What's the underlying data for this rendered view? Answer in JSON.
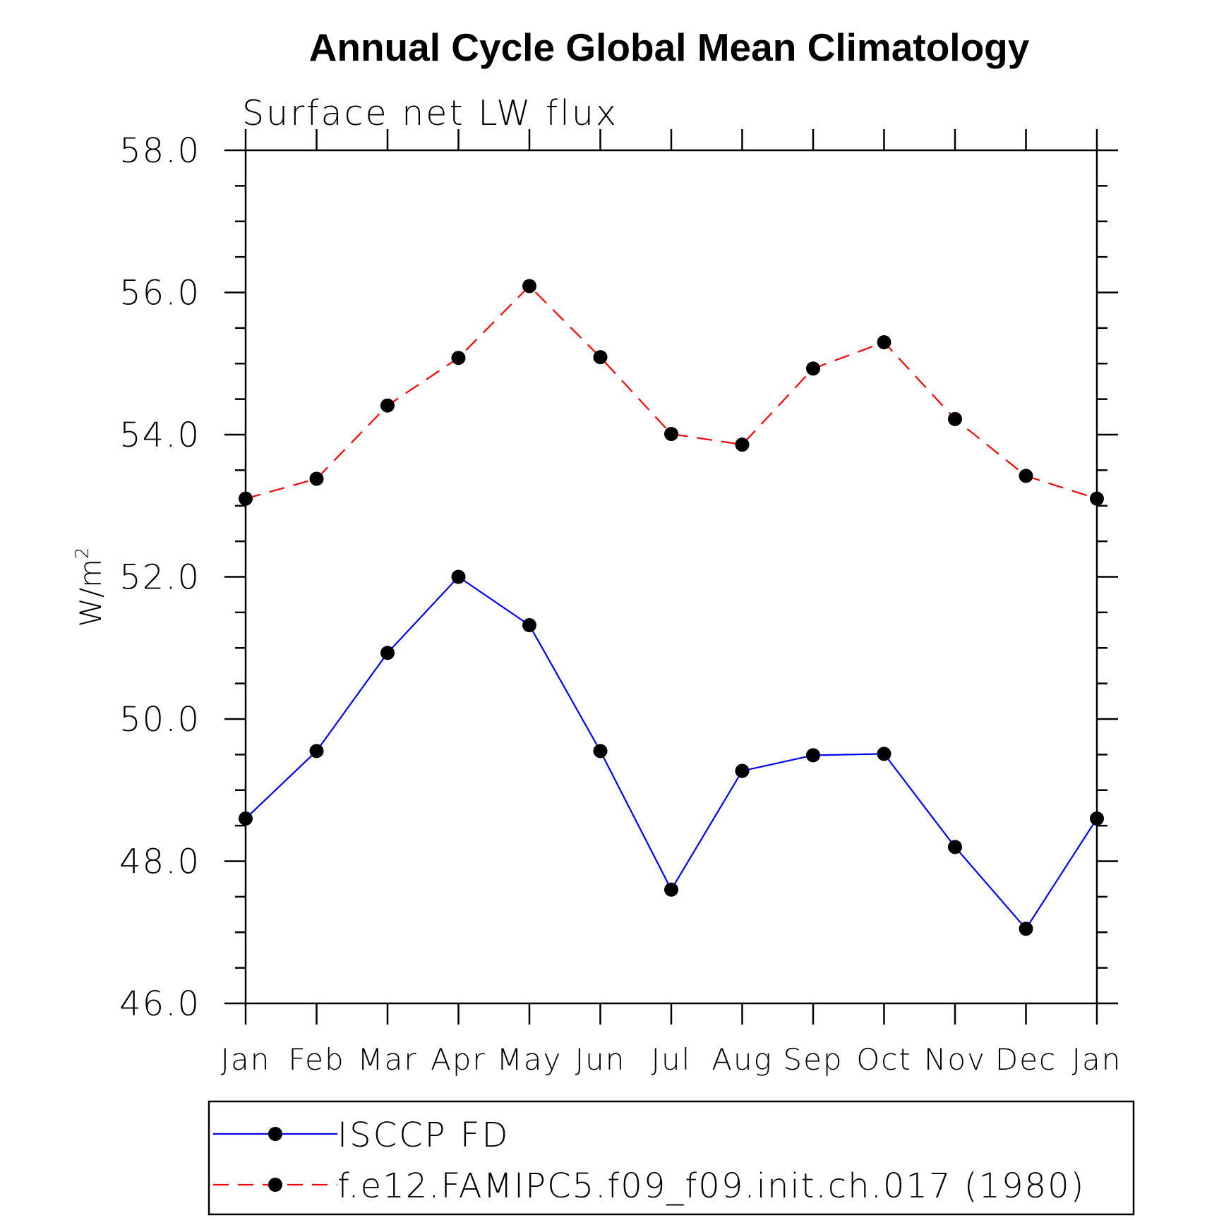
{
  "chart_data": {
    "type": "line",
    "title": "Annual Cycle Global Mean Climatology",
    "subtitle": "Surface net LW flux",
    "ylabel": "W/m",
    "ylabel_superscript": "2",
    "ylim": [
      46.0,
      58.0
    ],
    "y_major_ticks": [
      "58.0",
      "56.0",
      "54.0",
      "52.0",
      "50.0",
      "48.0",
      "46.0"
    ],
    "categories": [
      "Jan",
      "Feb",
      "Mar",
      "Apr",
      "May",
      "Jun",
      "Jul",
      "Aug",
      "Sep",
      "Oct",
      "Nov",
      "Dec",
      "Jan"
    ],
    "grid": false,
    "legend_position": "bottom",
    "series": [
      {
        "name": "ISCCP FD",
        "color": "#0000ff",
        "dash": "solid",
        "marker": "filled-circle",
        "values": [
          48.6,
          49.55,
          50.93,
          52.0,
          51.32,
          49.55,
          47.6,
          49.27,
          49.49,
          49.51,
          48.2,
          47.05,
          48.6
        ]
      },
      {
        "name": "f.e12.FAMIPC5.f09_f09.init.ch.017 (1980)",
        "color": "#ff0000",
        "dash": "dashed",
        "marker": "filled-circle",
        "values": [
          53.1,
          53.38,
          54.41,
          55.08,
          56.09,
          55.09,
          54.01,
          53.86,
          54.93,
          55.3,
          54.22,
          53.42,
          53.1
        ]
      }
    ]
  }
}
